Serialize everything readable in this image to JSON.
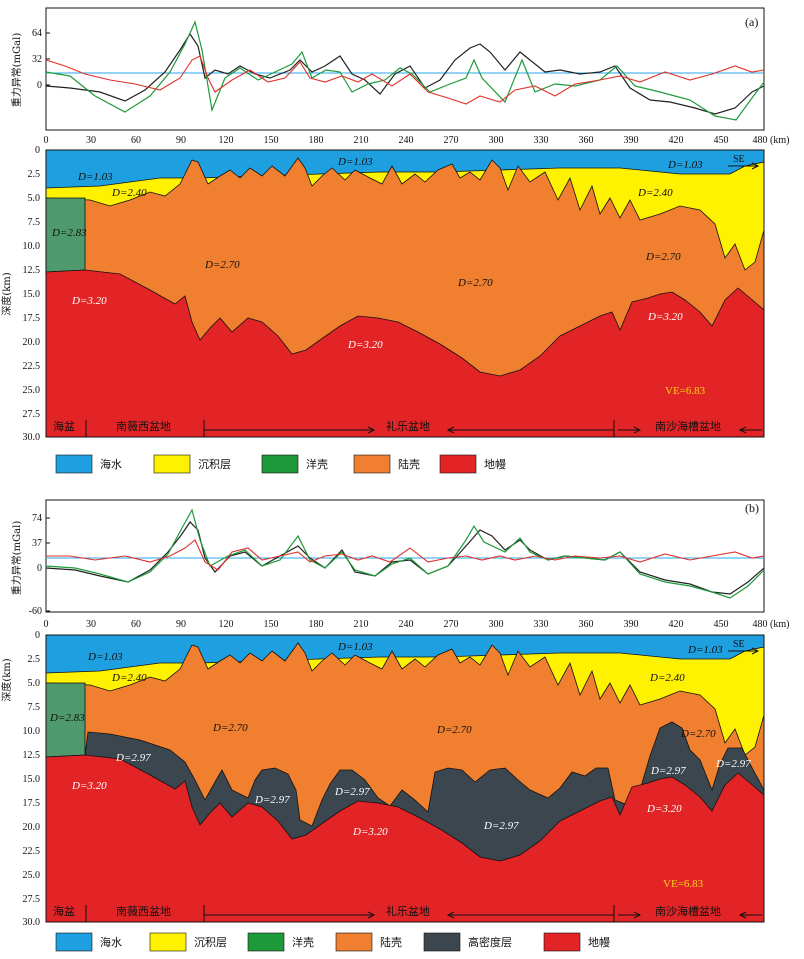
{
  "units": {
    "km_label": "(km)",
    "km_axis_title": "深度(km)",
    "gravity_axis_title": "重力异常(mGal)"
  },
  "colors": {
    "seawater": "#1e9fe0",
    "sediment": "#fff200",
    "oceanic_crust": "#4f9a6c",
    "continental_crust": "#f0802f",
    "mantle": "#e32426",
    "high_density": "#3c464e",
    "observed": "#222222",
    "model_a": "#1f9a3a",
    "residual": "#e0302a",
    "reference": "#2aa7e8"
  },
  "x_ticks": [
    "0",
    "30",
    "60",
    "90",
    "120",
    "150",
    "180",
    "210",
    "240",
    "270",
    "300",
    "330",
    "360",
    "390",
    "420",
    "450",
    "480"
  ],
  "depth_ticks": [
    "0",
    "2.5",
    "5.0",
    "7.5",
    "10.0",
    "12.5",
    "15.0",
    "17.5",
    "20.0",
    "22.5",
    "25.0",
    "27.5",
    "30.0"
  ],
  "panel_a": {
    "label": "(a)",
    "gravity_ticks": [
      "64",
      "32",
      "0"
    ],
    "density_labels": {
      "water_1": "D=1.03",
      "water_2": "D=1.03",
      "water_3": "D=1.03",
      "sed_1": "D=2.40",
      "sed_2": "D=2.40",
      "ocean": "D=2.83",
      "crust_1": "D=2.70",
      "crust_2": "D=2.70",
      "crust_3": "D=2.70",
      "mantle_1": "D=3.20",
      "mantle_2": "D=3.20",
      "mantle_3": "D=3.20"
    },
    "ve": "VE=6.83",
    "se": "SE",
    "regions": [
      "海盆",
      "南薇西盆地",
      "礼乐盆地",
      "南沙海槽盆地"
    ],
    "legend": [
      "海水",
      "沉积层",
      "洋壳",
      "陆壳",
      "地幔"
    ]
  },
  "panel_b": {
    "label": "(b)",
    "gravity_ticks": [
      "74",
      "37",
      "0",
      "-60"
    ],
    "density_labels": {
      "water_1": "D=1.03",
      "water_2": "D=1.03",
      "water_3": "D=1.03",
      "sed_1": "D=2.40",
      "sed_2": "D=2.40",
      "ocean": "D=2.83",
      "crust_1": "D=2.70",
      "crust_2": "D=2.70",
      "crust_3": "D=2.70",
      "hd_1": "D=2.97",
      "hd_2": "D=2.97",
      "hd_3": "D=2.97",
      "hd_4": "D=2.97",
      "hd_5": "D=2.97",
      "hd_6": "D=2.97",
      "mantle_1": "D=3.20",
      "mantle_2": "D=3.20",
      "mantle_3": "D=3.20"
    },
    "ve": "VE=6.83",
    "se": "SE",
    "regions": [
      "海盆",
      "南薇西盆地",
      "礼乐盆地",
      "南沙海槽盆地"
    ],
    "legend": [
      "海水",
      "沉积层",
      "洋壳",
      "陆壳",
      "高密度层",
      "地幔"
    ]
  }
}
